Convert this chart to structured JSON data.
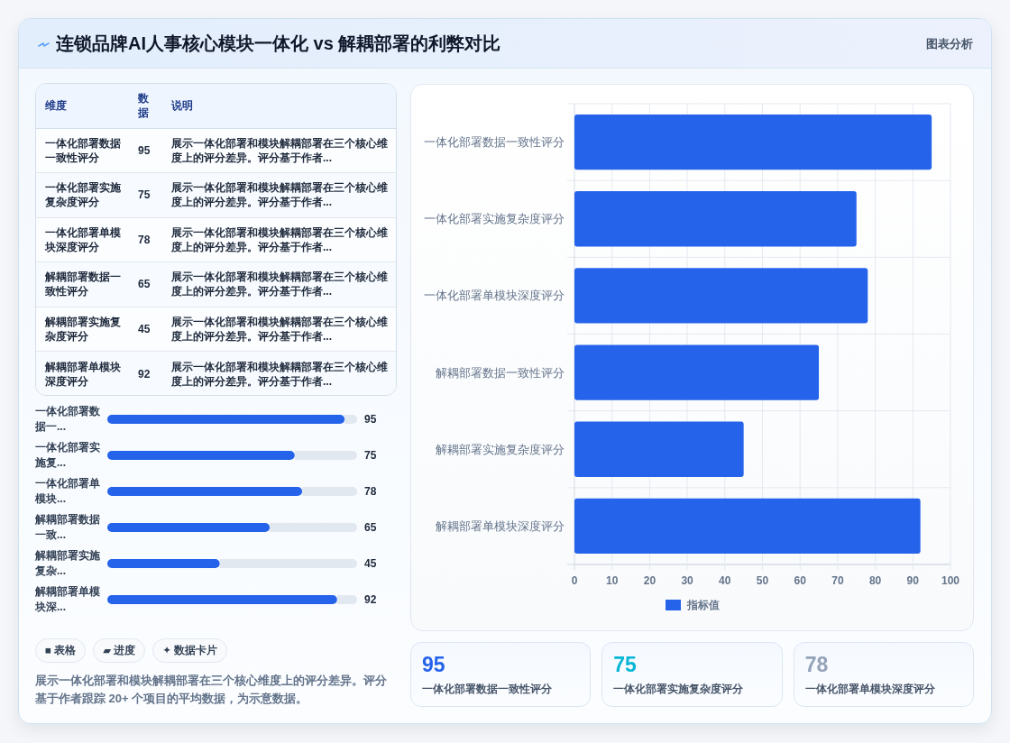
{
  "chart_data": [
    {
      "type": "other",
      "title": "连锁品牌AI人事核心模块一体化 vs 解耦部署的利弊对比",
      "annotations": [
        "图表分析"
      ]
    },
    {
      "type": "other",
      "categories": [
        "一体化部署数据一致性评分",
        "一体化部署实施复杂度评分",
        "一体化部署单模块深度评分",
        "解耦部署数据一致性评分",
        "解耦部署实施复杂度评分",
        "解耦部署单模块深度评分"
      ],
      "values": [
        95,
        75,
        78,
        65,
        45,
        92
      ],
      "data_labels": true,
      "annotations": [
        "维度",
        "数据",
        "说明",
        "展示一体化部署和模块解耦部署在三个核心维度上的评分差异。评分基于作者...",
        "展示一体化部署和模块解耦部署在三个核心维度上的评分差异。评分基于作者...",
        "展示一体化部署和模块解耦部署在三个核心维度上的评分差异。评分基于作者...",
        "展示一体化部署和模块解耦部署在三个核心维度上的评分差异。评分基于作者...",
        "展示一体化部署和模块解耦部署在三个核心维度上的评分差异。评分基于作者...",
        "展示一体化部署和模块解耦部署在三个核心维度上的评分差异。评分基于作者..."
      ]
    },
    {
      "type": "bar",
      "orientation": "horizontal",
      "categories": [
        "一体化部署数据一...",
        "一体化部署实施复...",
        "一体化部署单模块...",
        "解耦部署数据一致...",
        "解耦部署实施复杂...",
        "解耦部署单模块深..."
      ],
      "series": [
        {
          "color": "#2563eb",
          "values": [
            95,
            75,
            78,
            65,
            45,
            92
          ]
        }
      ],
      "xlim": [
        0,
        100
      ],
      "data_labels": true,
      "tick_labels": "y"
    },
    {
      "type": "other",
      "annotations": [
        "■ 表格",
        "▰ 进度",
        "✦ 数据卡片",
        "展示一体化部署和模块解耦部署在三个核心维度上的评分差异。评分基于作者跟踪 20+ 个项目的平均数据，为示意数据。"
      ]
    },
    {
      "type": "bar",
      "orientation": "horizontal",
      "categories": [
        "一体化部署数据一致性评分",
        "一体化部署实施复杂度评分",
        "一体化部署单模块深度评分",
        "解耦部署数据一致性评分",
        "解耦部署实施复杂度评分",
        "解耦部署单模块深度评分"
      ],
      "series": [
        {
          "name": "指标值",
          "color": "#2563eb",
          "values": [
            95,
            75,
            78,
            65,
            45,
            92
          ]
        }
      ],
      "xlim": [
        0,
        100
      ],
      "xticks": [
        0,
        10,
        20,
        30,
        40,
        50,
        60,
        70,
        80,
        90,
        100
      ],
      "grid": true,
      "legend": "bottom"
    },
    {
      "type": "other",
      "categories": [
        "一体化部署数据一致性评分",
        "一体化部署实施复杂度评分",
        "一体化部署单模块深度评分"
      ],
      "values": [
        95,
        75,
        78
      ],
      "data_labels": true
    }
  ]
}
